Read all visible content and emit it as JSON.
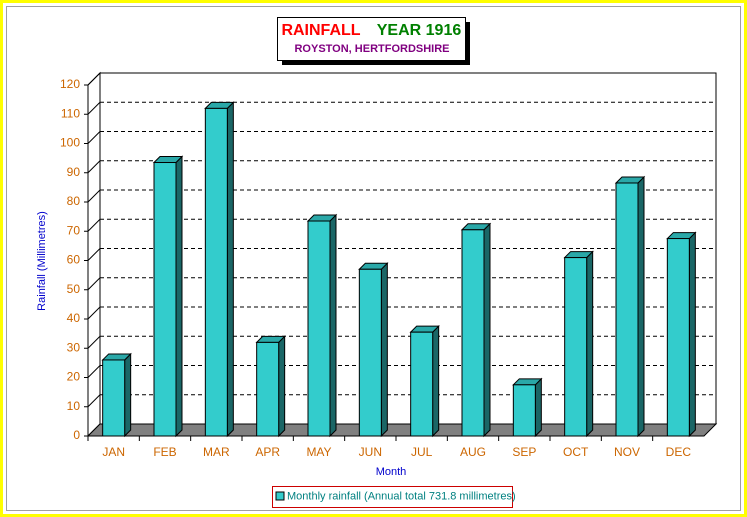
{
  "chart_data": {
    "type": "bar3d",
    "title": "RAINFALL",
    "title_year": "YEAR 1916",
    "subtitle": "ROYSTON, HERTFORDSHIRE",
    "x_label": "Month",
    "y_label": "Rainfall (Millimetres)",
    "categories": [
      "JAN",
      "FEB",
      "MAR",
      "APR",
      "MAY",
      "JUN",
      "JUL",
      "AUG",
      "SEP",
      "OCT",
      "NOV",
      "DEC"
    ],
    "series": [
      {
        "name": "Monthly rainfall (Annual total 731.8 millimetres)",
        "color": "#33cccc",
        "values": [
          26,
          93.5,
          112,
          32,
          73.5,
          57,
          35.5,
          70.5,
          17.5,
          61,
          86.5,
          67.5
        ]
      }
    ],
    "ylim": [
      0,
      120
    ],
    "yticks": [
      0,
      10,
      20,
      30,
      40,
      50,
      60,
      70,
      80,
      90,
      100,
      110,
      120
    ],
    "grid": true,
    "legend": "bottom"
  }
}
